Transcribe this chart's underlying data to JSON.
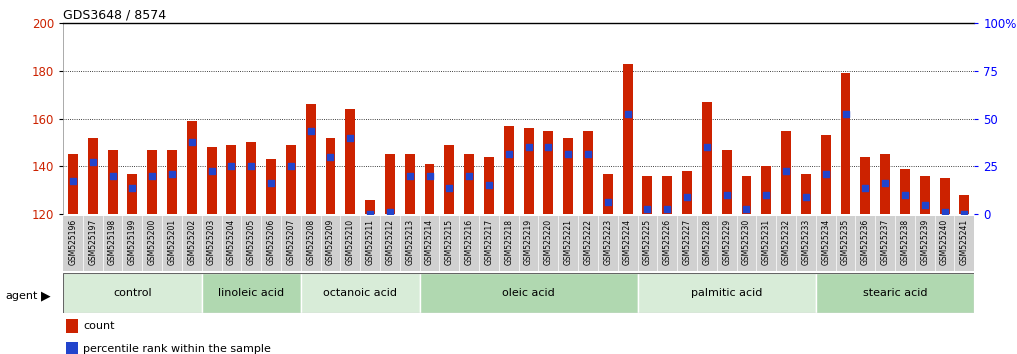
{
  "title": "GDS3648 / 8574",
  "samples": [
    "GSM525196",
    "GSM525197",
    "GSM525198",
    "GSM525199",
    "GSM525200",
    "GSM525201",
    "GSM525202",
    "GSM525203",
    "GSM525204",
    "GSM525205",
    "GSM525206",
    "GSM525207",
    "GSM525208",
    "GSM525209",
    "GSM525210",
    "GSM525211",
    "GSM525212",
    "GSM525213",
    "GSM525214",
    "GSM525215",
    "GSM525216",
    "GSM525217",
    "GSM525218",
    "GSM525219",
    "GSM525220",
    "GSM525221",
    "GSM525222",
    "GSM525223",
    "GSM525224",
    "GSM525225",
    "GSM525226",
    "GSM525227",
    "GSM525228",
    "GSM525229",
    "GSM525230",
    "GSM525231",
    "GSM525232",
    "GSM525233",
    "GSM525234",
    "GSM525235",
    "GSM525236",
    "GSM525237",
    "GSM525238",
    "GSM525239",
    "GSM525240",
    "GSM525241"
  ],
  "counts": [
    145,
    152,
    147,
    137,
    147,
    147,
    159,
    148,
    149,
    150,
    143,
    149,
    166,
    152,
    164,
    126,
    145,
    145,
    141,
    149,
    145,
    144,
    157,
    156,
    155,
    152,
    155,
    137,
    183,
    136,
    136,
    138,
    167,
    147,
    136,
    140,
    155,
    137,
    153,
    179,
    144,
    145,
    139,
    136,
    135,
    128
  ],
  "percentile_ranks": [
    134,
    142,
    136,
    131,
    136,
    137,
    150,
    138,
    140,
    140,
    133,
    140,
    155,
    144,
    152,
    120,
    121,
    136,
    136,
    131,
    136,
    132,
    145,
    148,
    148,
    145,
    145,
    125,
    162,
    122,
    122,
    127,
    148,
    128,
    122,
    128,
    138,
    127,
    137,
    162,
    131,
    133,
    128,
    124,
    121,
    120
  ],
  "groups": [
    {
      "label": "control",
      "start": 0,
      "end": 7
    },
    {
      "label": "linoleic acid",
      "start": 7,
      "end": 12
    },
    {
      "label": "octanoic acid",
      "start": 12,
      "end": 18
    },
    {
      "label": "oleic acid",
      "start": 18,
      "end": 29
    },
    {
      "label": "palmitic acid",
      "start": 29,
      "end": 38
    },
    {
      "label": "stearic acid",
      "start": 38,
      "end": 46
    }
  ],
  "bar_color": "#cc2200",
  "dot_color": "#2244cc",
  "ymin": 120,
  "ymax": 200,
  "yticks_left": [
    120,
    140,
    160,
    180,
    200
  ],
  "right_tick_labels": [
    "0",
    "25",
    "50",
    "75",
    "100%"
  ],
  "grid_values": [
    140,
    160,
    180
  ],
  "plot_bg": "#ffffff",
  "xlabel_bg": "#d0d0d0",
  "group_colors": [
    "#d8ecd8",
    "#b0d8b0"
  ]
}
